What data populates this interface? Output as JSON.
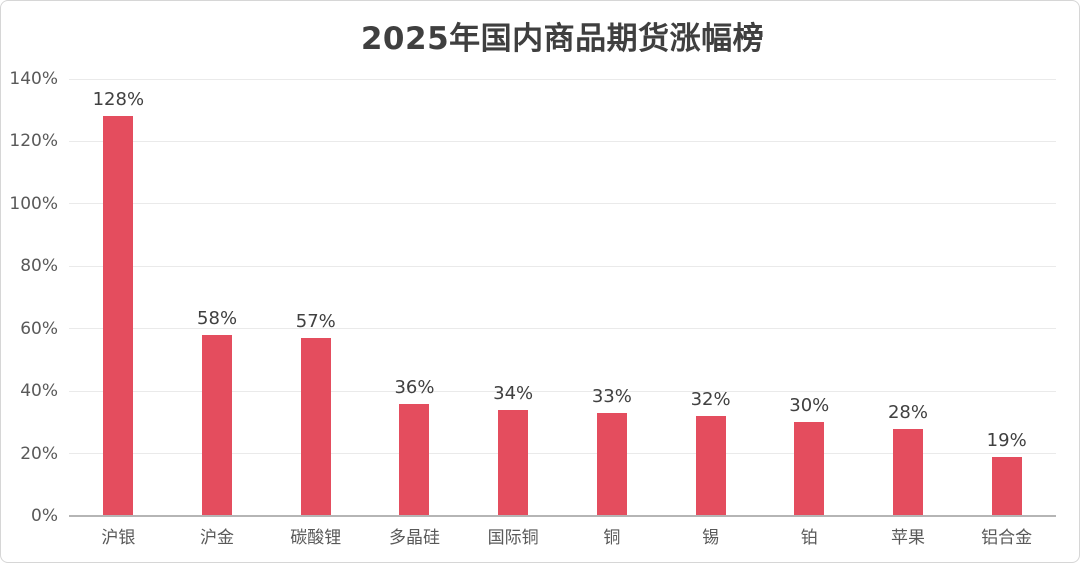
{
  "chart_data": {
    "type": "bar",
    "title": "2025年国内商品期货涨幅榜",
    "categories": [
      "沪银",
      "沪金",
      "碳酸锂",
      "多晶硅",
      "国际铜",
      "铜",
      "锡",
      "铂",
      "苹果",
      "铝合金"
    ],
    "values": [
      128,
      58,
      57,
      36,
      34,
      33,
      32,
      30,
      28,
      19
    ],
    "data_labels": [
      "128%",
      "58%",
      "57%",
      "36%",
      "34%",
      "33%",
      "32%",
      "30%",
      "28%",
      "19%"
    ],
    "xlabel": "",
    "ylabel": "",
    "ylim": [
      0,
      140
    ],
    "y_ticks": [
      {
        "value": 0,
        "label": "0%"
      },
      {
        "value": 20,
        "label": "20%"
      },
      {
        "value": 40,
        "label": "40%"
      },
      {
        "value": 60,
        "label": "60%"
      },
      {
        "value": 80,
        "label": "80%"
      },
      {
        "value": 100,
        "label": "100%"
      },
      {
        "value": 120,
        "label": "120%"
      },
      {
        "value": 140,
        "label": "140%"
      }
    ],
    "grid": "horizontal",
    "legend": "none",
    "colors": {
      "bar": "#e44d5e",
      "gridline": "#eaeaea",
      "axis_line": "#b5b5b5",
      "title_text": "#3f3f3f",
      "tick_text": "#595959",
      "value_label_text": "#404040",
      "background": "#ffffff",
      "frame_border": "#d6d6d6"
    }
  }
}
